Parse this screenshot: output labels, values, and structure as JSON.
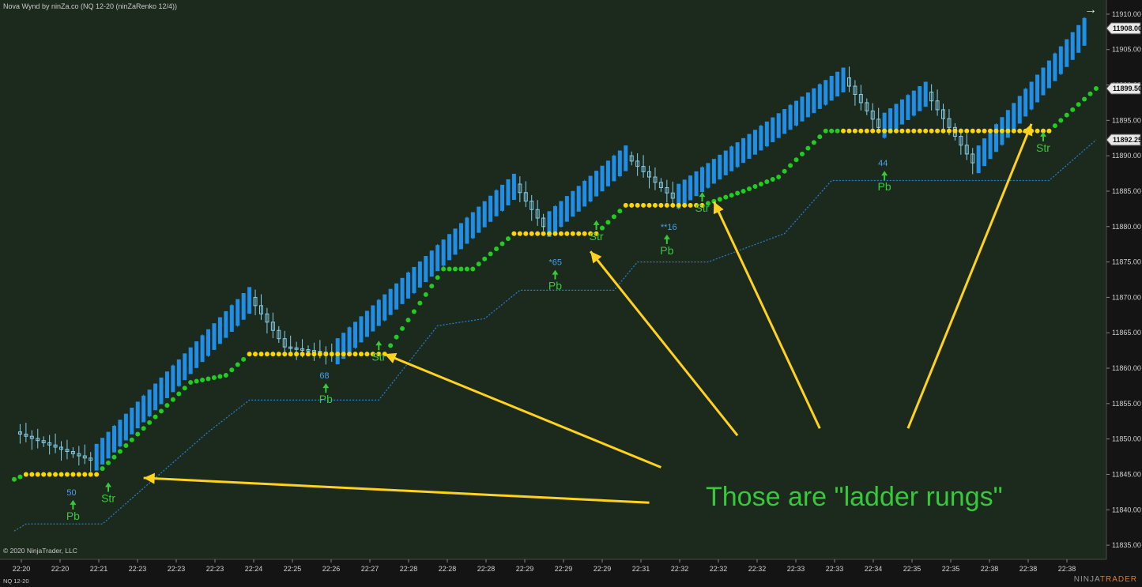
{
  "window": {
    "title": "Nova Wynd by ninZa.co (NQ 12-20 (ninZaRenko 12/4))",
    "copyright": "© 2020 NinjaTrader, LLC",
    "symbol_footer": "NQ 12-20",
    "brand_prefix": "NINJA",
    "brand_suffix": "TRADER",
    "scroll_arrow": "→"
  },
  "annotation": {
    "text": "Those are \"ladder rungs\""
  },
  "colors": {
    "background": "#1b2a1c",
    "axis_panel": "#141414",
    "bull_candle": "#1f8fe8",
    "pullback_candle": "#86cdea",
    "stop_green": "#22cc22",
    "stop_yellow": "#ffd700",
    "trail_line": "#2a7fd4",
    "arrow": "#ffd21f",
    "signal_text": "#37c93a",
    "number_text": "#4a9fea"
  },
  "chart_data": {
    "type": "candlestick",
    "y_axis": {
      "ylim": [
        11833,
        11912
      ],
      "ticks": [
        11835,
        11840,
        11845,
        11850,
        11855,
        11860,
        11865,
        11870,
        11875,
        11880,
        11885,
        11890,
        11895,
        11900,
        11905,
        11910
      ],
      "tick_labels": [
        "11835.00",
        "11840.00",
        "11845.00",
        "11850.00",
        "11855.00",
        "11860.00",
        "11865.00",
        "11870.00",
        "11875.00",
        "11880.00",
        "11885.00",
        "11890.00",
        "11895.00",
        "11900.00",
        "11905.00",
        "11910.00"
      ],
      "price_markers": [
        {
          "value": 11908.0,
          "label": "11908.00"
        },
        {
          "value": 11899.5,
          "label": "11899.50"
        },
        {
          "value": 11892.25,
          "label": "11892.25"
        }
      ]
    },
    "x_axis": {
      "labels": [
        "22:20",
        "22:20",
        "22:21",
        "22:23",
        "22:23",
        "22:23",
        "22:24",
        "22:25",
        "22:26",
        "22:27",
        "22:28",
        "22:28",
        "22:28",
        "22:29",
        "22:29",
        "22:29",
        "22:31",
        "22:32",
        "22:32",
        "22:32",
        "22:33",
        "22:33",
        "22:34",
        "22:35",
        "22:35",
        "22:38",
        "22:38",
        "22:38"
      ]
    },
    "key_points": [
      {
        "bar": 0,
        "close": 11851
      },
      {
        "bar": 13,
        "close": 11847
      },
      {
        "bar": 40,
        "close": 11870
      },
      {
        "bar": 46,
        "close": 11863
      },
      {
        "bar": 54,
        "close": 11862
      },
      {
        "bar": 85,
        "close": 11886
      },
      {
        "bar": 90,
        "close": 11880
      },
      {
        "bar": 104,
        "close": 11890
      },
      {
        "bar": 112,
        "close": 11884
      },
      {
        "bar": 141,
        "close": 11901
      },
      {
        "bar": 147,
        "close": 11894
      },
      {
        "bar": 155,
        "close": 11899
      },
      {
        "bar": 163,
        "close": 11889
      },
      {
        "bar": 182,
        "close": 11908
      }
    ],
    "stop_levels": [
      {
        "bar": 0,
        "value": 11844.3
      },
      {
        "bar": 2,
        "value": 11845
      },
      {
        "bar": 14,
        "value": 11845
      },
      {
        "bar": 30,
        "value": 11858
      },
      {
        "bar": 36,
        "value": 11859
      },
      {
        "bar": 40,
        "value": 11862
      },
      {
        "bar": 63,
        "value": 11862
      },
      {
        "bar": 73,
        "value": 11874
      },
      {
        "bar": 78,
        "value": 11874
      },
      {
        "bar": 85,
        "value": 11879
      },
      {
        "bar": 99,
        "value": 11879
      },
      {
        "bar": 104,
        "value": 11883
      },
      {
        "bar": 117,
        "value": 11883
      },
      {
        "bar": 124,
        "value": 11885
      },
      {
        "bar": 130,
        "value": 11887
      },
      {
        "bar": 138,
        "value": 11893.5
      },
      {
        "bar": 176,
        "value": 11893.5
      },
      {
        "bar": 184,
        "value": 11899.5
      }
    ],
    "rung_ranges": [
      [
        2,
        14
      ],
      [
        40,
        63
      ],
      [
        85,
        99
      ],
      [
        104,
        117
      ],
      [
        141,
        176
      ]
    ],
    "trail_line": [
      {
        "bar": 0,
        "value": 11837
      },
      {
        "bar": 2,
        "value": 11838
      },
      {
        "bar": 15,
        "value": 11838
      },
      {
        "bar": 33,
        "value": 11851
      },
      {
        "bar": 40,
        "value": 11855.5
      },
      {
        "bar": 62,
        "value": 11855.5
      },
      {
        "bar": 72,
        "value": 11866
      },
      {
        "bar": 80,
        "value": 11867
      },
      {
        "bar": 86,
        "value": 11871
      },
      {
        "bar": 102,
        "value": 11871
      },
      {
        "bar": 106,
        "value": 11875
      },
      {
        "bar": 118,
        "value": 11875
      },
      {
        "bar": 131,
        "value": 11879
      },
      {
        "bar": 139,
        "value": 11886.5
      },
      {
        "bar": 176,
        "value": 11886.5
      },
      {
        "bar": 184,
        "value": 11892.25
      }
    ],
    "signals": [
      {
        "bar": 10,
        "label": "Pb",
        "number": "50",
        "value": 11844.5
      },
      {
        "bar": 16,
        "label": "Str",
        "value": 11847
      },
      {
        "bar": 53,
        "label": "Pb",
        "number": "68",
        "value": 11861
      },
      {
        "bar": 62,
        "label": "Str",
        "value": 11867
      },
      {
        "bar": 92,
        "label": "Pb",
        "number": "*65",
        "value": 11877
      },
      {
        "bar": 99,
        "label": "Str",
        "value": 11884
      },
      {
        "bar": 111,
        "label": "Pb",
        "number": "**16",
        "value": 11882
      },
      {
        "bar": 117,
        "label": "Str",
        "value": 11888
      },
      {
        "bar": 148,
        "label": "Pb",
        "number": "44",
        "value": 11891
      },
      {
        "bar": 175,
        "label": "Str",
        "value": 11896.5
      }
    ],
    "annotation_arrows": [
      {
        "from_bar": 108,
        "from_value": 11841,
        "to_bar": 22,
        "to_value": 11844.5
      },
      {
        "from_bar": 110,
        "from_value": 11846,
        "to_bar": 63,
        "to_value": 11862
      },
      {
        "from_bar": 123,
        "from_value": 11850.5,
        "to_bar": 98,
        "to_value": 11876.5
      },
      {
        "from_bar": 137,
        "from_value": 11851.5,
        "to_bar": 119,
        "to_value": 11883.5
      },
      {
        "from_bar": 152,
        "from_value": 11851.5,
        "to_bar": 173,
        "to_value": 11894.5
      }
    ]
  }
}
